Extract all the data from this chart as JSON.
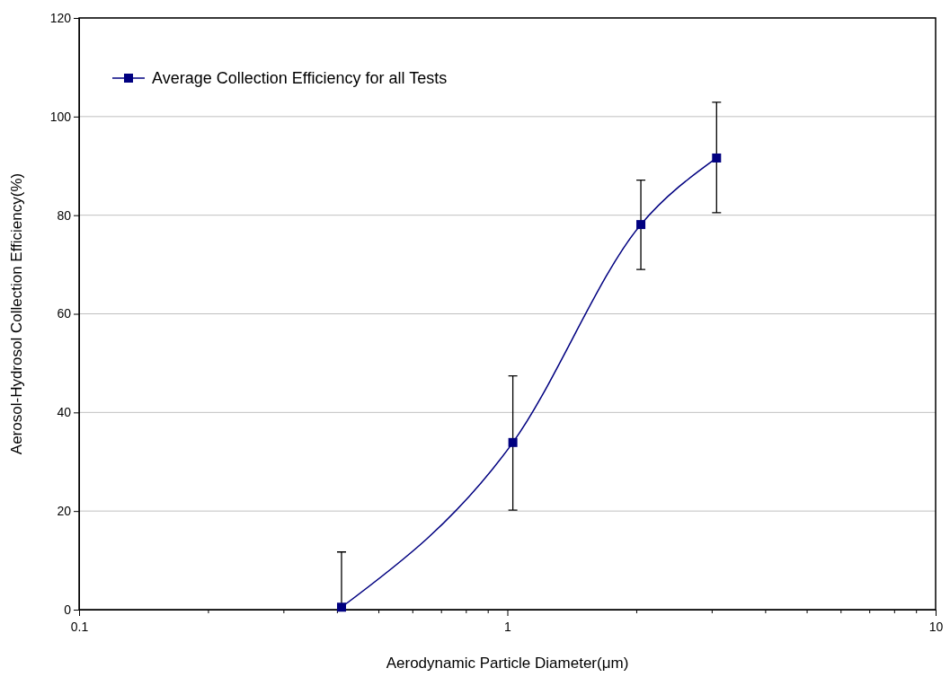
{
  "chart_data": {
    "type": "line",
    "xlabel": "Aerodynamic Particle Diameter(μm)",
    "ylabel": "Aerosol-Hydrosol Collection Efficiency(%)",
    "x": [
      0.41,
      1.03,
      2.05,
      3.08
    ],
    "series": [
      {
        "name": "Average Collection Efficiency for all Tests",
        "color": "#000080",
        "values": [
          0.5,
          33.9,
          78.1,
          91.6
        ],
        "errors": [
          [
            0,
            11.7
          ],
          [
            20.2,
            47.4
          ],
          [
            69.0,
            87.1
          ],
          [
            80.5,
            102.9
          ]
        ]
      }
    ],
    "log": "x",
    "xlim": [
      0.1,
      10
    ],
    "ylim": [
      0,
      120
    ],
    "xticks": [
      0.1,
      {
        "value": 0.2,
        "label": null
      },
      {
        "value": 0.3,
        "label": null
      },
      {
        "value": 0.4,
        "label": null
      },
      {
        "value": 0.5,
        "label": null
      },
      {
        "value": 0.6,
        "label": null
      },
      {
        "value": 0.7,
        "label": null
      },
      {
        "value": 0.8,
        "label": null
      },
      {
        "value": 0.9,
        "label": null
      },
      1,
      {
        "value": 2,
        "label": null
      },
      {
        "value": 3,
        "label": null
      },
      {
        "value": 4,
        "label": null
      },
      {
        "value": 5,
        "label": null
      },
      {
        "value": 6,
        "label": null
      },
      {
        "value": 7,
        "label": null
      },
      {
        "value": 8,
        "label": null
      },
      {
        "value": 9,
        "label": null
      },
      10
    ],
    "yticks": [
      0,
      20,
      40,
      60,
      80,
      100,
      120
    ],
    "grid": "y",
    "legend": "top left",
    "marker": "square",
    "line_style": "solid"
  }
}
